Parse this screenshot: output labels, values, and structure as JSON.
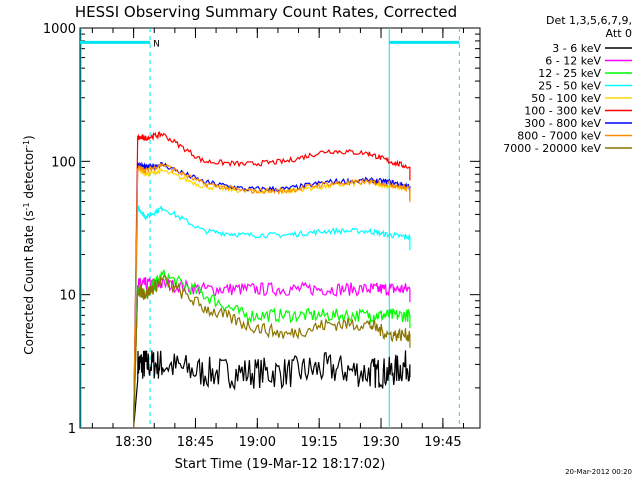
{
  "chart_data": {
    "type": "line",
    "title": "HESSI Observing Summary Count Rates, Corrected",
    "xlabel": "Start Time (19-Mar-12 18:17:02)",
    "ylabel_main": "Corrected Count Rate (s",
    "ylabel_sup1": "-1",
    "ylabel_mid": " detector",
    "ylabel_sup2": "-1",
    "ylabel_end": ")",
    "yscale": "log",
    "ylim": [
      1,
      1000
    ],
    "xlim_minutes_after_start": [
      0,
      97
    ],
    "x_ticks": [
      "18:30",
      "18:45",
      "19:00",
      "19:15",
      "19:30",
      "19:45"
    ],
    "y_ticks": [
      "1",
      "10",
      "100",
      "1000"
    ],
    "legend_title_1": "Det 1,3,5,6,7,9,",
    "legend_title_2": "Att 0",
    "legend_placement": "top-right outside",
    "footer_date": "20-Mar-2012 00:20",
    "night_flag": "N",
    "attenuator_state_bars": [
      {
        "from_min": 0,
        "to_min": 17,
        "y": 780
      },
      {
        "from_min": 75,
        "to_min": 92,
        "y": 780
      }
    ],
    "dashed_markers_min": [
      17,
      92
    ],
    "solid_markers_min": [
      75
    ],
    "series": [
      {
        "name": "3 - 6 keV",
        "color": "#000000",
        "x": [
          13,
          14,
          16,
          20,
          30,
          40,
          50,
          60,
          70,
          75,
          80
        ],
        "values": [
          1,
          3,
          3,
          3,
          2.6,
          2.6,
          2.6,
          2.8,
          2.6,
          2.6,
          3
        ]
      },
      {
        "name": "6 - 12 keV",
        "color": "#ff00ff",
        "x": [
          13,
          14,
          16,
          20,
          30,
          40,
          50,
          60,
          70,
          75,
          80
        ],
        "values": [
          1,
          12,
          12,
          12,
          11,
          11,
          11,
          11,
          11,
          11,
          11
        ]
      },
      {
        "name": "12 - 25 keV",
        "color": "#00ff00",
        "x": [
          13,
          14,
          16,
          20,
          30,
          40,
          50,
          60,
          70,
          75,
          80
        ],
        "values": [
          1,
          11,
          10,
          14,
          10,
          7,
          7,
          7,
          7,
          7,
          7
        ]
      },
      {
        "name": "25 - 50 keV",
        "color": "#00ffff",
        "x": [
          13,
          14,
          16,
          20,
          30,
          40,
          50,
          60,
          70,
          75,
          80
        ],
        "values": [
          1,
          45,
          38,
          45,
          30,
          28,
          28,
          30,
          30,
          28,
          27
        ]
      },
      {
        "name": "50 - 100 keV",
        "color": "#ffd700",
        "x": [
          13,
          14,
          16,
          20,
          30,
          40,
          50,
          60,
          70,
          75,
          80
        ],
        "values": [
          1,
          90,
          80,
          85,
          65,
          60,
          60,
          65,
          70,
          65,
          62
        ]
      },
      {
        "name": "100 - 300 keV",
        "color": "#ff0000",
        "x": [
          13,
          14,
          16,
          20,
          30,
          40,
          50,
          60,
          70,
          75,
          80
        ],
        "values": [
          1,
          150,
          150,
          160,
          100,
          95,
          100,
          120,
          115,
          100,
          90
        ]
      },
      {
        "name": "300 - 800 keV",
        "color": "#0000ff",
        "x": [
          13,
          14,
          16,
          20,
          30,
          40,
          50,
          60,
          70,
          75,
          80
        ],
        "values": [
          1,
          95,
          90,
          95,
          70,
          62,
          62,
          70,
          72,
          70,
          65
        ]
      },
      {
        "name": "800 - 7000 keV",
        "color": "#ff8c00",
        "x": [
          13,
          14,
          16,
          20,
          30,
          40,
          50,
          60,
          70,
          75,
          80
        ],
        "values": [
          1,
          90,
          85,
          95,
          68,
          60,
          60,
          68,
          70,
          68,
          62
        ]
      },
      {
        "name": "7000 - 20000 keV",
        "color": "#8b7500",
        "x": [
          13,
          14,
          16,
          20,
          30,
          40,
          50,
          60,
          70,
          75,
          80
        ],
        "values": [
          1,
          11,
          10,
          13,
          8,
          6,
          5,
          6,
          6,
          5,
          5
        ]
      }
    ]
  }
}
